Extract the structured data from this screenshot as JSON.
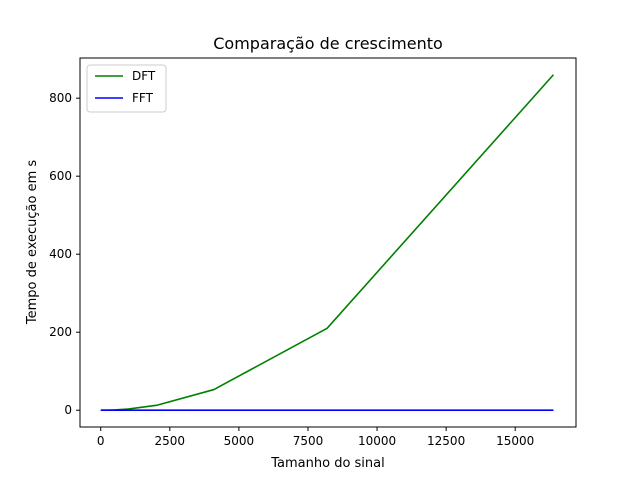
{
  "chart_data": {
    "type": "line",
    "title": "Comparação de crescimento",
    "xlabel": "Tamanho do sinal",
    "ylabel": "Tempo de execução em s",
    "xlim": [
      -750,
      17200
    ],
    "ylim": [
      -43,
      903
    ],
    "xticks": [
      0,
      2500,
      5000,
      7500,
      10000,
      12500,
      15000
    ],
    "xtick_labels": [
      "0",
      "2500",
      "5000",
      "7500",
      "10000",
      "12500",
      "15000"
    ],
    "yticks": [
      0,
      200,
      400,
      600,
      800
    ],
    "ytick_labels": [
      "0",
      "200",
      "400",
      "600",
      "800"
    ],
    "grid": false,
    "legend_position": "top-left",
    "series": [
      {
        "name": "DFT",
        "color": "#008000",
        "x": [
          2,
          4,
          8,
          16,
          32,
          64,
          128,
          256,
          512,
          1024,
          2048,
          4096,
          8192,
          16384
        ],
        "y": [
          0,
          0,
          0,
          0,
          0,
          0,
          0.05,
          0.2,
          0.8,
          3.2,
          13,
          53,
          210,
          860
        ]
      },
      {
        "name": "FFT",
        "color": "#0000ff",
        "x": [
          2,
          4,
          8,
          16,
          32,
          64,
          128,
          256,
          512,
          1024,
          2048,
          4096,
          8192,
          16384
        ],
        "y": [
          0,
          0,
          0,
          0,
          0,
          0,
          0,
          0,
          0,
          0.01,
          0.02,
          0.05,
          0.1,
          0.2
        ]
      }
    ]
  }
}
